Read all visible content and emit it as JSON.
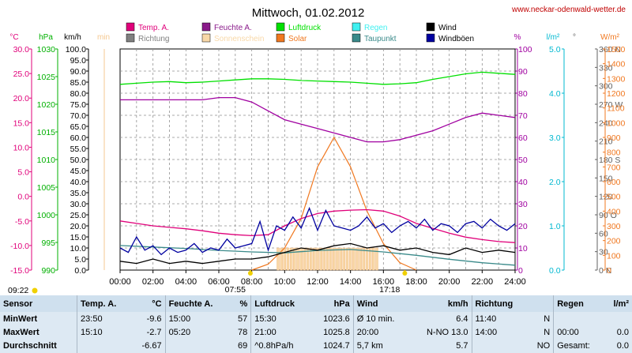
{
  "chart_data": {
    "type": "line",
    "title": "Mittwoch, 01.02.2012",
    "source": "www.neckar-odenwald-wetter.de",
    "x_ticks": [
      "00:00",
      "02:00",
      "04:00",
      "06:00",
      "08:00",
      "10:00",
      "12:00",
      "14:00",
      "16:00",
      "18:00",
      "20:00",
      "22:00",
      "24:00"
    ],
    "sunrise": "07:55",
    "sunset": "17:18",
    "corner_time": "09:22",
    "grid": true,
    "legend_position": "top",
    "axes": {
      "temp": {
        "unit": "°C",
        "color": "#e0007a",
        "range": [
          -15,
          30
        ],
        "ticks": [
          "30.0",
          "25.0",
          "20.0",
          "15.0",
          "10.0",
          "5.0",
          "0.0",
          "-5.0",
          "-10.0",
          "-15.0"
        ]
      },
      "pressure": {
        "unit": "hPa",
        "color": "#00b000",
        "range": [
          990,
          1030
        ],
        "ticks": [
          "1030",
          "1025",
          "1020",
          "1015",
          "1010",
          "1005",
          "1000",
          "995",
          "990"
        ]
      },
      "wind": {
        "unit": "km/h",
        "color": "#000000",
        "range": [
          0,
          100
        ],
        "ticks": [
          "100.0",
          "95.0",
          "90.0",
          "85.0",
          "80.0",
          "75.0",
          "70.0",
          "65.0",
          "60.0",
          "55.0",
          "50.0",
          "45.0",
          "40.0",
          "35.0",
          "30.0",
          "25.0",
          "20.0",
          "15.0",
          "10.0",
          "5.0",
          "0.0"
        ]
      },
      "sun": {
        "unit": "min",
        "color": "#f5c890"
      },
      "humidity": {
        "unit": "%",
        "color": "#a000a0",
        "range": [
          0,
          100
        ],
        "ticks": [
          "100",
          "90",
          "80",
          "70",
          "60",
          "50",
          "40",
          "30",
          "20",
          "10",
          "0"
        ]
      },
      "rain": {
        "unit": "l/m²",
        "color": "#00b8d0",
        "range": [
          0,
          5
        ],
        "ticks": [
          "5.0",
          "4.0",
          "3.0",
          "2.0",
          "1.0",
          "0.0"
        ]
      },
      "direction": {
        "unit": "°",
        "color": "#606060",
        "range": [
          0,
          360
        ],
        "ticks": [
          "360 N",
          "330",
          "300",
          "270 W",
          "240",
          "210",
          "180 S",
          "150",
          "120",
          "90 O",
          "60",
          "30",
          "0 N"
        ]
      },
      "solar": {
        "unit": "W/m²",
        "color": "#f07820",
        "range": [
          0,
          1500
        ],
        "ticks": [
          "1500",
          "1400",
          "1300",
          "1200",
          "1100",
          "1000",
          "900",
          "800",
          "700",
          "600",
          "500",
          "400",
          "300",
          "200",
          "100",
          "0"
        ]
      }
    },
    "legend": [
      {
        "label": "Temp. A.",
        "color": "#e0007a"
      },
      {
        "label": "Richtung",
        "color": "#808080"
      },
      {
        "label": "Feuchte A.",
        "color": "#8a1a8a"
      },
      {
        "label": "Sonnenschein",
        "color": "#f8d8a8"
      },
      {
        "label": "Luftdruck",
        "color": "#00e000"
      },
      {
        "label": "Solar",
        "color": "#f07820"
      },
      {
        "label": "Regen",
        "color": "#40f0f0"
      },
      {
        "label": "Taupunkt",
        "color": "#3a8a8a"
      },
      {
        "label": "Wind",
        "color": "#000000"
      },
      {
        "label": "Windböen",
        "color": "#0000a0"
      }
    ],
    "series": [
      {
        "name": "Luftdruck",
        "color": "#00e000",
        "x": [
          0,
          1,
          2,
          3,
          4,
          5,
          6,
          7,
          8,
          9,
          10,
          11,
          12,
          13,
          14,
          15,
          16,
          17,
          18,
          19,
          20,
          21,
          22,
          23,
          24
        ],
        "values": [
          1023.6,
          1023.8,
          1024.0,
          1024.1,
          1023.9,
          1024.0,
          1024.2,
          1024.4,
          1024.6,
          1024.6,
          1024.5,
          1024.3,
          1024.2,
          1024.1,
          1024.0,
          1023.8,
          1023.6,
          1023.7,
          1023.9,
          1024.5,
          1025.0,
          1025.5,
          1025.8,
          1025.6,
          1025.4
        ]
      },
      {
        "name": "Feuchte A.",
        "color": "#a000a0",
        "x": [
          0,
          0.5,
          1,
          2,
          3,
          4,
          5,
          6,
          7,
          8,
          9,
          10,
          11,
          12,
          13,
          14,
          15,
          16,
          17,
          18,
          19,
          20,
          21,
          22,
          23,
          24
        ],
        "values": [
          77,
          77,
          77,
          77,
          77,
          77,
          77,
          78,
          78,
          76,
          72,
          68,
          66,
          64,
          62,
          60,
          58,
          58,
          59,
          61,
          63,
          66,
          69,
          71,
          70,
          69
        ]
      },
      {
        "name": "Temp. A.",
        "color": "#e0007a",
        "x": [
          0,
          1,
          2,
          3,
          4,
          5,
          6,
          7,
          8,
          9,
          10,
          11,
          12,
          13,
          14,
          15,
          16,
          17,
          18,
          19,
          20,
          21,
          22,
          23,
          24
        ],
        "values": [
          -5.0,
          -5.5,
          -6.0,
          -6.3,
          -6.6,
          -7.0,
          -7.5,
          -7.8,
          -8.0,
          -7.8,
          -6.0,
          -4.5,
          -3.5,
          -3.0,
          -2.8,
          -2.7,
          -3.0,
          -4.0,
          -5.5,
          -6.5,
          -7.5,
          -8.3,
          -8.8,
          -9.2,
          -9.4
        ]
      },
      {
        "name": "Taupunkt",
        "color": "#3a8a8a",
        "x": [
          0,
          2,
          4,
          6,
          8,
          10,
          12,
          14,
          16,
          18,
          20,
          22,
          24
        ],
        "values": [
          -10.0,
          -10.3,
          -10.6,
          -11.0,
          -11.3,
          -11.5,
          -11.0,
          -10.8,
          -11.3,
          -12.0,
          -12.8,
          -13.5,
          -14.0
        ]
      },
      {
        "name": "Windböen",
        "color": "#0000a0",
        "x": [
          0,
          0.5,
          1,
          1.5,
          2,
          2.5,
          3,
          3.5,
          4,
          4.5,
          5,
          5.5,
          6,
          6.5,
          7,
          7.5,
          8,
          8.5,
          9,
          9.5,
          10,
          10.5,
          11,
          11.5,
          12,
          12.5,
          13,
          13.5,
          14,
          14.5,
          15,
          15.5,
          16,
          16.5,
          17,
          17.5,
          18,
          18.5,
          19,
          19.5,
          20,
          20.5,
          21,
          21.5,
          22,
          22.5,
          23,
          23.5,
          24
        ],
        "values": [
          10,
          8,
          15,
          9,
          11,
          7,
          10,
          8,
          9,
          12,
          8,
          10,
          9,
          14,
          10,
          11,
          12,
          22,
          9,
          20,
          18,
          24,
          19,
          28,
          18,
          27,
          20,
          19,
          18,
          20,
          24,
          19,
          21,
          17,
          20,
          22,
          19,
          23,
          18,
          21,
          20,
          17,
          21,
          22,
          19,
          23,
          20,
          18,
          21
        ]
      },
      {
        "name": "Wind",
        "color": "#000000",
        "x": [
          0,
          1,
          2,
          3,
          4,
          5,
          6,
          7,
          8,
          9,
          10,
          11,
          12,
          13,
          14,
          15,
          16,
          17,
          18,
          19,
          20,
          21,
          22,
          23,
          24
        ],
        "values": [
          4,
          3,
          5,
          3,
          4,
          3,
          4,
          5,
          5,
          6,
          8,
          10,
          9,
          11,
          12,
          10,
          11,
          9,
          10,
          8,
          7,
          10,
          8,
          9,
          8
        ]
      }
    ],
    "sunshine": {
      "x": [
        9.6,
        9.8,
        10,
        10.2,
        10.4,
        10.6,
        10.8,
        11,
        11.2,
        11.4,
        11.6,
        11.8,
        12,
        12.2,
        12.4,
        12.6,
        12.8,
        13,
        13.2,
        13.4,
        13.6,
        13.8,
        14,
        14.2,
        14.4,
        14.6,
        14.8,
        15,
        15.2,
        15.4,
        15.6
      ],
      "values": [
        10,
        10,
        10,
        10,
        10,
        10,
        10,
        10,
        10,
        10,
        10,
        10,
        10,
        10,
        10,
        10,
        10,
        10,
        10,
        10,
        10,
        10,
        10,
        10,
        10,
        10,
        10,
        10,
        10,
        10,
        10
      ]
    },
    "solar": {
      "x": [
        8,
        9,
        10,
        11,
        12,
        13,
        14,
        15,
        16,
        17,
        18
      ],
      "values": [
        0,
        40,
        150,
        350,
        700,
        900,
        700,
        400,
        180,
        50,
        0
      ]
    }
  },
  "stats": {
    "header": {
      "sensor": "Sensor",
      "temp": "Temp. A.",
      "temp_unit": "°C",
      "hum": "Feuchte A.",
      "hum_unit": "%",
      "press": "Luftdruck",
      "press_unit": "hPa",
      "wind": "Wind",
      "wind_unit": "km/h",
      "dir": "Richtung",
      "rain": "Regen",
      "rain_unit": "l/m²"
    },
    "min": {
      "label": "MinWert",
      "temp_time": "23:50",
      "temp_val": "-9.6",
      "hum_time": "15:00",
      "hum_val": "57",
      "press_time": "15:30",
      "press_val": "1023.6",
      "wind_time": "Ø 10 min.",
      "wind_val": "6.4",
      "dir_time": "11:40",
      "dir_val": "N",
      "rain_time": "",
      "rain_val": ""
    },
    "max": {
      "label": "MaxWert",
      "temp_time": "15:10",
      "temp_val": "-2.7",
      "hum_time": "05:20",
      "hum_val": "78",
      "press_time": "21:00",
      "press_val": "1025.8",
      "wind_time": "20:00",
      "wind_extra": "N-NO 13.0",
      "dir_time": "14:00",
      "dir_val": "N",
      "rain_time": "00:00",
      "rain_val": "0.0"
    },
    "avg": {
      "label": "Durchschnitt",
      "temp_val": "-6.67",
      "hum_val": "69",
      "press_time": "^0.8hPa/h",
      "press_val": "1024.7",
      "wind_time": "5,7 km",
      "wind_val": "5.7",
      "dir_val": "NO",
      "rain_time": "Gesamt:",
      "rain_val": "0.0"
    }
  }
}
